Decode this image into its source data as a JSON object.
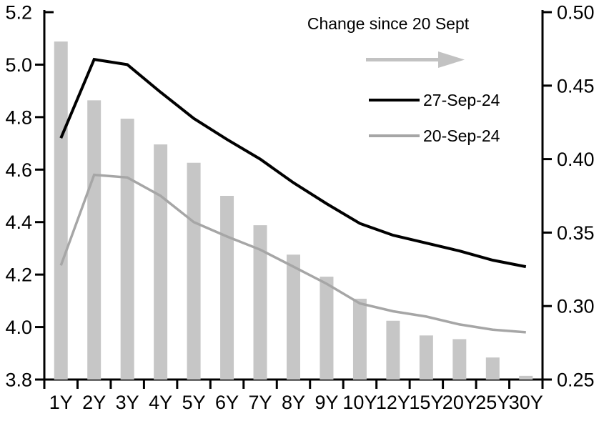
{
  "chart_data": {
    "type": "bar+line combo (dual axis)",
    "categories": [
      "1Y",
      "2Y",
      "3Y",
      "4Y",
      "5Y",
      "6Y",
      "7Y",
      "8Y",
      "9Y",
      "10Y",
      "12Y",
      "15Y",
      "20Y",
      "25Y",
      "30Y"
    ],
    "left_axis": {
      "ticks": [
        "5.2",
        "5.0",
        "4.8",
        "4.6",
        "4.4",
        "4.2",
        "4.0",
        "3.8"
      ],
      "min": 3.8,
      "max": 5.2
    },
    "right_axis": {
      "ticks": [
        "0.50",
        "0.45",
        "0.40",
        "0.35",
        "0.30",
        "0.25"
      ],
      "min": 0.25,
      "max": 0.5
    },
    "grid": false,
    "legend_position": "inside-top-right",
    "series": [
      {
        "name": "Change since 20 Sept",
        "type": "bar",
        "axis": "right",
        "color": "#c6c6c6",
        "values": [
          0.48,
          0.44,
          0.4275,
          0.41,
          0.3975,
          0.375,
          0.355,
          0.335,
          0.32,
          0.305,
          0.29,
          0.28,
          0.2775,
          0.265,
          0.2525
        ]
      },
      {
        "name": "27-Sep-24",
        "type": "line",
        "axis": "left",
        "color": "#000000",
        "values": [
          4.72,
          5.02,
          5.0,
          4.895,
          4.795,
          4.715,
          4.64,
          4.55,
          4.47,
          4.395,
          4.35,
          4.32,
          4.29,
          4.255,
          4.23
        ]
      },
      {
        "name": "20-Sep-24",
        "type": "line",
        "axis": "left",
        "color": "#a6a6a6",
        "values": [
          4.235,
          4.58,
          4.57,
          4.5,
          4.4,
          4.345,
          4.295,
          4.23,
          4.165,
          4.09,
          4.06,
          4.04,
          4.01,
          3.99,
          3.98
        ]
      }
    ],
    "legend": {
      "title": "Change since 20 Sept",
      "arrow_color": "#c2c2c2",
      "entries": [
        {
          "label": "27-Sep-24",
          "color": "#000000"
        },
        {
          "label": "20-Sep-24",
          "color": "#a6a6a6"
        }
      ]
    },
    "colors": {
      "axis": "#000000",
      "bar": "#c6c6c6",
      "line_latest": "#000000",
      "line_previous": "#a6a6a6"
    }
  }
}
